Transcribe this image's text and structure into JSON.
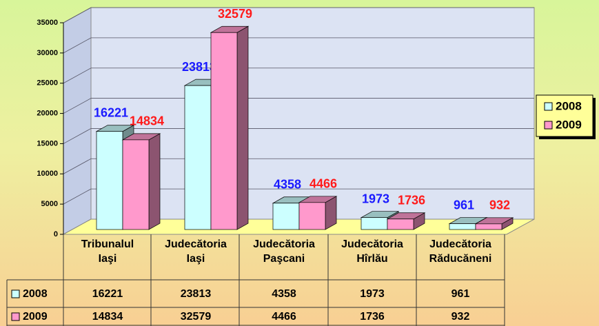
{
  "chart_data": {
    "type": "bar3d",
    "categories": [
      "Tribunalul Iaşi",
      "Judecătoria Iaşi",
      "Judecătoria Paşcani",
      "Judecătoria Hîrlău",
      "Judecătoria Răducăneni"
    ],
    "series": [
      {
        "name": "2008",
        "color": "#ccffff",
        "label_color": "#1a1aff",
        "values": [
          16221,
          23813,
          4358,
          1973,
          961
        ]
      },
      {
        "name": "2009",
        "color": "#ff99cc",
        "label_color": "#ff1a1a",
        "values": [
          14834,
          32579,
          4466,
          1736,
          932
        ]
      }
    ],
    "ylim": [
      0,
      35000
    ],
    "yticks": [
      0,
      5000,
      10000,
      15000,
      20000,
      25000,
      30000,
      35000
    ],
    "grid": true,
    "legend": "right",
    "data_table": true
  }
}
